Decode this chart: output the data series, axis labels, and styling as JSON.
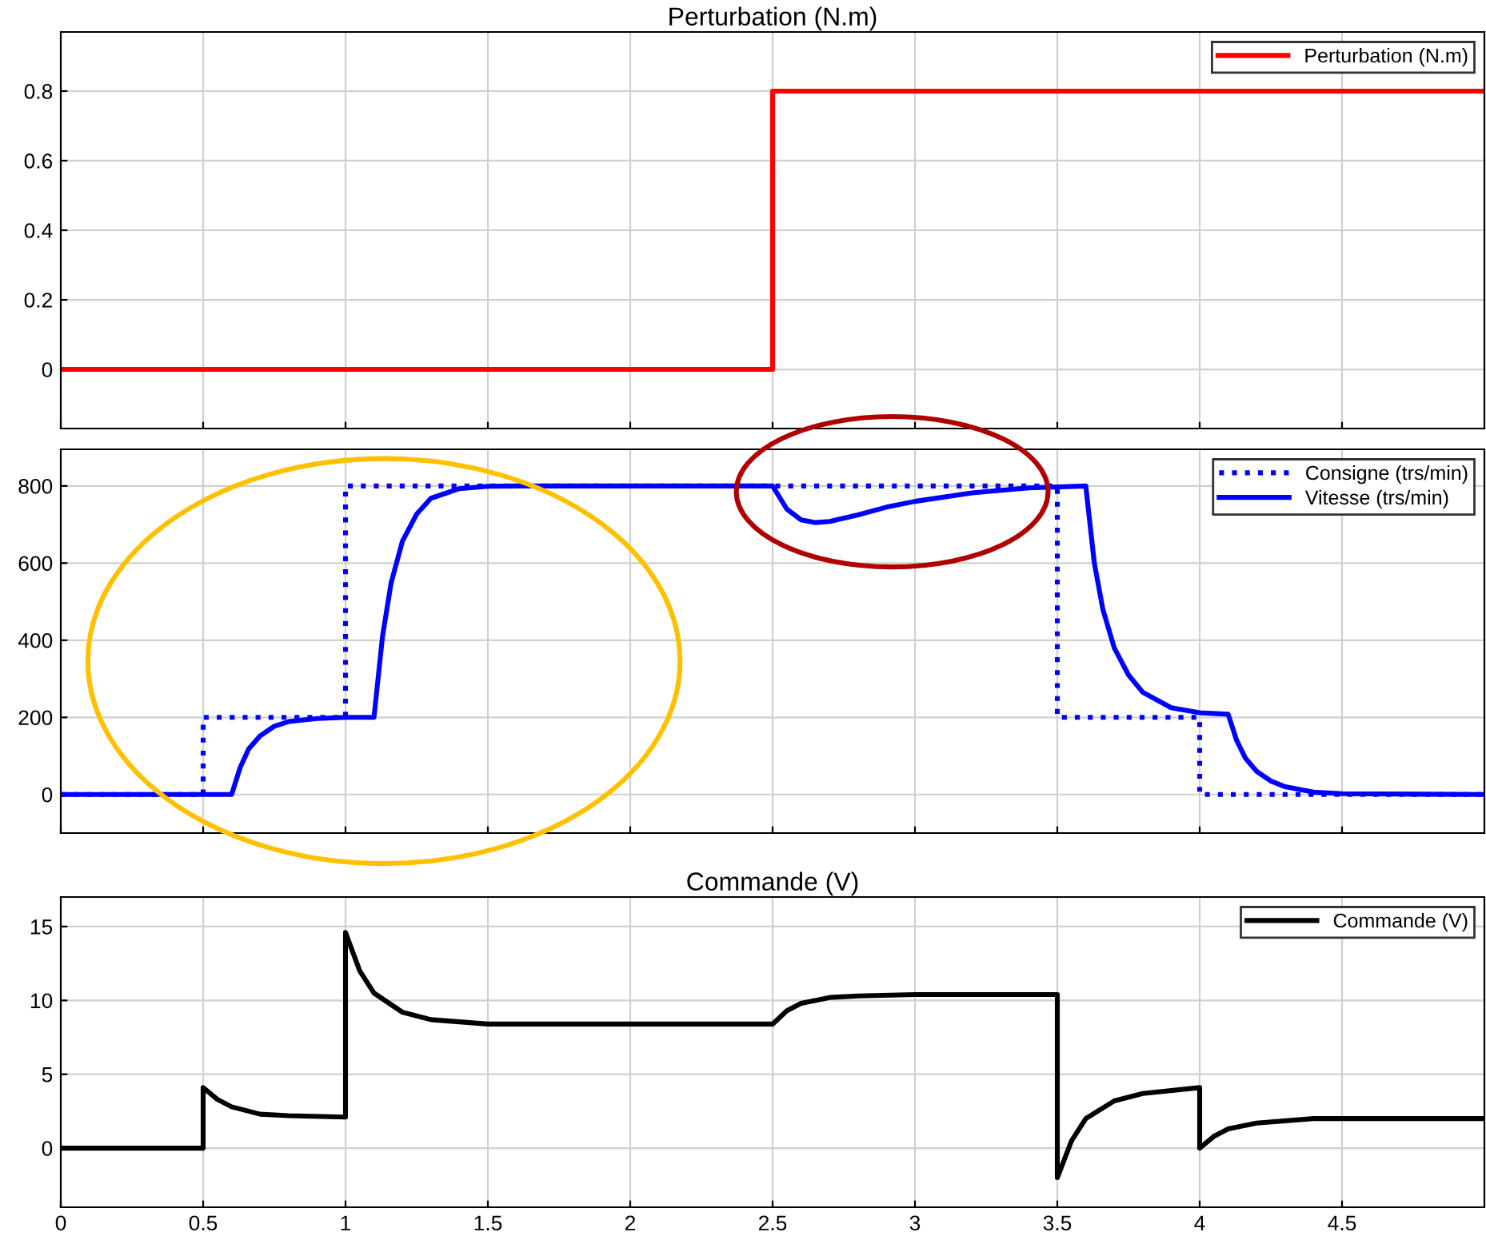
{
  "chart_data": [
    {
      "type": "line",
      "title": "Perturbation (N.m)",
      "xlim": [
        0,
        5
      ],
      "xticks": [
        0,
        0.5,
        1,
        1.5,
        2,
        2.5,
        3,
        3.5,
        4,
        4.5
      ],
      "ylim": [
        -0.17,
        0.97
      ],
      "yticks": [
        0,
        0.2,
        0.4,
        0.6,
        0.8
      ],
      "grid": true,
      "legend": "top right",
      "tick_labels": "y",
      "series": [
        {
          "name": "Perturbation (N.m)",
          "color": "#ff0000",
          "x": [
            0,
            2.5,
            2.5,
            5
          ],
          "values": [
            0,
            0,
            0.8,
            0.8
          ]
        }
      ]
    },
    {
      "type": "line",
      "xlim": [
        0,
        5
      ],
      "xticks": [
        0,
        0.5,
        1,
        1.5,
        2,
        2.5,
        3,
        3.5,
        4,
        4.5
      ],
      "ylim": [
        -100,
        895
      ],
      "yticks": [
        0,
        200,
        400,
        600,
        800
      ],
      "grid": true,
      "legend": "top right",
      "tick_labels": "y",
      "series": [
        {
          "name": "Consigne (trs/min)",
          "color": "#0000ff",
          "line_style": "dotted",
          "x": [
            0,
            0.5,
            0.5,
            1,
            1,
            3.5,
            3.5,
            4,
            4,
            5
          ],
          "values": [
            0,
            0,
            200,
            200,
            800,
            800,
            200,
            200,
            0,
            0
          ]
        },
        {
          "name": "Vitesse (trs/min)",
          "color": "#0000ff",
          "line_style": "solid",
          "x": [
            0,
            0.6,
            0.63,
            0.66,
            0.7,
            0.75,
            0.8,
            0.9,
            1.0,
            1.1,
            1.13,
            1.16,
            1.2,
            1.25,
            1.3,
            1.4,
            1.5,
            1.6,
            2.5,
            2.55,
            2.6,
            2.65,
            2.7,
            2.8,
            2.9,
            3.0,
            3.2,
            3.4,
            3.6,
            3.63,
            3.66,
            3.7,
            3.75,
            3.8,
            3.9,
            4.0,
            4.1,
            4.13,
            4.16,
            4.2,
            4.25,
            4.3,
            4.4,
            4.5,
            5
          ],
          "values": [
            0,
            0,
            70,
            118,
            152,
            177,
            189,
            197,
            200,
            200,
            410,
            548,
            657,
            727,
            768,
            793,
            799,
            800,
            800,
            740,
            712,
            705,
            708,
            725,
            745,
            760,
            782,
            795,
            800,
            600,
            480,
            380,
            310,
            265,
            225,
            212,
            208,
            140,
            95,
            60,
            35,
            20,
            6,
            2,
            0
          ]
        }
      ]
    },
    {
      "type": "line",
      "title": "Commande (V)",
      "xlim": [
        0,
        5
      ],
      "xticks": [
        0,
        0.5,
        1,
        1.5,
        2,
        2.5,
        3,
        3.5,
        4,
        4.5
      ],
      "ylim": [
        -4,
        17
      ],
      "yticks": [
        0,
        5,
        10,
        15
      ],
      "grid": true,
      "legend": "top right",
      "series": [
        {
          "name": "Commande (V)",
          "color": "#000000",
          "x": [
            0,
            0.5,
            0.5,
            0.55,
            0.6,
            0.7,
            0.8,
            1.0,
            1.0,
            1.05,
            1.1,
            1.2,
            1.3,
            1.5,
            2.5,
            2.55,
            2.6,
            2.7,
            2.8,
            3.0,
            3.5,
            3.5,
            3.55,
            3.6,
            3.7,
            3.8,
            4.0,
            4.0,
            4.05,
            4.1,
            4.2,
            4.4,
            5
          ],
          "values": [
            0,
            0,
            4.1,
            3.3,
            2.8,
            2.3,
            2.2,
            2.1,
            14.6,
            12.0,
            10.5,
            9.2,
            8.7,
            8.4,
            8.4,
            9.3,
            9.8,
            10.2,
            10.3,
            10.4,
            10.4,
            -2.0,
            0.5,
            2.0,
            3.2,
            3.7,
            4.1,
            0.0,
            0.8,
            1.3,
            1.7,
            2.0,
            2.0
          ]
        }
      ]
    }
  ]
}
